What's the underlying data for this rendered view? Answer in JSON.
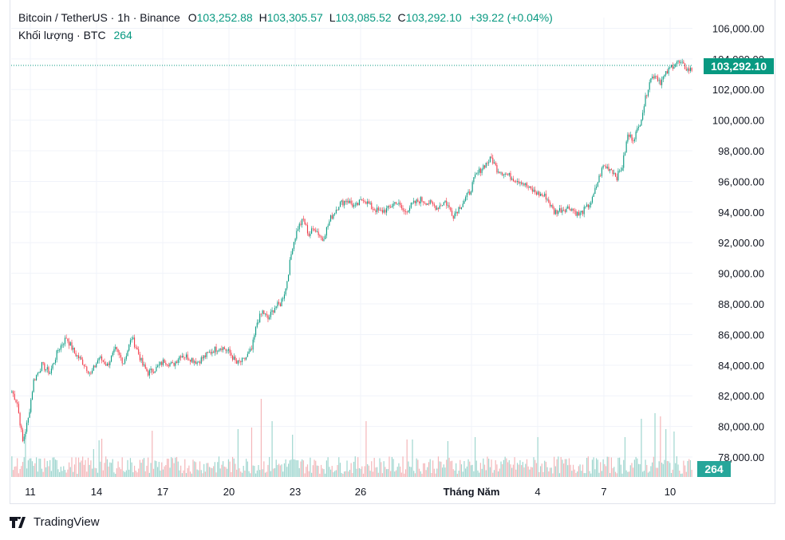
{
  "header": {
    "symbol": "Bitcoin / TetherUS · 1h · Binance",
    "open_label": "O",
    "open": "103,252.88",
    "high_label": "H",
    "high": "103,305.57",
    "low_label": "L",
    "low": "103,085.52",
    "close_label": "C",
    "close": "103,292.10",
    "change": "+39.22 (+0.04%)",
    "volume_label": "Khối lượng · BTC",
    "volume": "264"
  },
  "last_price_tag": "103,292.10",
  "volume_tag": "264",
  "branding": "TradingView",
  "colors": {
    "up": "#089981",
    "down": "#f23645",
    "vol_up": "#9fd6cf",
    "vol_down": "#f4b6b9"
  },
  "chart_data": {
    "type": "candlestick",
    "y_ticks": [
      "106,000.00",
      "104,000.00",
      "102,000.00",
      "100,000.00",
      "98,000.00",
      "96,000.00",
      "94,000.00",
      "92,000.00",
      "90,000.00",
      "88,000.00",
      "86,000.00",
      "84,000.00",
      "82,000.00",
      "80,000.00",
      "78,000.00"
    ],
    "x_ticks": [
      "11",
      "14",
      "17",
      "20",
      "23",
      "26",
      "Tháng Năm",
      "4",
      "7",
      "10"
    ],
    "ylim": [
      76700,
      106700
    ],
    "close_path": [
      [
        0,
        82300
      ],
      [
        4,
        81500
      ],
      [
        8,
        79000
      ],
      [
        12,
        80500
      ],
      [
        16,
        83000
      ],
      [
        22,
        84000
      ],
      [
        28,
        83500
      ],
      [
        34,
        85000
      ],
      [
        40,
        85800
      ],
      [
        46,
        84800
      ],
      [
        52,
        84200
      ],
      [
        58,
        83400
      ],
      [
        64,
        84500
      ],
      [
        70,
        84000
      ],
      [
        76,
        85000
      ],
      [
        82,
        84200
      ],
      [
        88,
        85800
      ],
      [
        92,
        85000
      ],
      [
        96,
        84000
      ],
      [
        100,
        83500
      ],
      [
        106,
        83800
      ],
      [
        112,
        84300
      ],
      [
        118,
        84000
      ],
      [
        124,
        84700
      ],
      [
        130,
        84500
      ],
      [
        136,
        84200
      ],
      [
        142,
        84600
      ],
      [
        148,
        85000
      ],
      [
        154,
        85200
      ],
      [
        160,
        84800
      ],
      [
        165,
        84100
      ],
      [
        170,
        84300
      ],
      [
        176,
        85000
      ],
      [
        180,
        86800
      ],
      [
        184,
        87500
      ],
      [
        188,
        87000
      ],
      [
        193,
        87800
      ],
      [
        197,
        88000
      ],
      [
        201,
        89000
      ],
      [
        206,
        91800
      ],
      [
        210,
        93000
      ],
      [
        214,
        93500
      ],
      [
        218,
        92500
      ],
      [
        222,
        93000
      ],
      [
        228,
        92200
      ],
      [
        234,
        93600
      ],
      [
        240,
        94500
      ],
      [
        246,
        94800
      ],
      [
        252,
        94300
      ],
      [
        258,
        94900
      ],
      [
        264,
        94300
      ],
      [
        270,
        94000
      ],
      [
        276,
        94200
      ],
      [
        282,
        94700
      ],
      [
        288,
        94000
      ],
      [
        294,
        94500
      ],
      [
        300,
        94800
      ],
      [
        306,
        94600
      ],
      [
        312,
        94300
      ],
      [
        318,
        94700
      ],
      [
        324,
        93800
      ],
      [
        330,
        94500
      ],
      [
        336,
        95300
      ],
      [
        340,
        96300
      ],
      [
        346,
        97000
      ],
      [
        352,
        97500
      ],
      [
        356,
        96800
      ],
      [
        362,
        96500
      ],
      [
        368,
        96200
      ],
      [
        374,
        96000
      ],
      [
        380,
        95500
      ],
      [
        386,
        95200
      ],
      [
        392,
        95000
      ],
      [
        398,
        94000
      ],
      [
        404,
        94200
      ],
      [
        410,
        94300
      ],
      [
        416,
        93800
      ],
      [
        422,
        94300
      ],
      [
        426,
        94800
      ],
      [
        430,
        96000
      ],
      [
        434,
        97000
      ],
      [
        440,
        96800
      ],
      [
        444,
        96300
      ],
      [
        448,
        97000
      ],
      [
        452,
        99000
      ],
      [
        456,
        98800
      ],
      [
        460,
        99500
      ],
      [
        464,
        101000
      ],
      [
        468,
        102600
      ],
      [
        472,
        103000
      ],
      [
        476,
        102500
      ],
      [
        480,
        103000
      ],
      [
        484,
        103500
      ],
      [
        488,
        103800
      ],
      [
        492,
        103600
      ],
      [
        496,
        103300
      ]
    ],
    "volume_spikes": [
      [
        10,
        52
      ],
      [
        60,
        35
      ],
      [
        64,
        46
      ],
      [
        66,
        48
      ],
      [
        103,
        58
      ],
      [
        166,
        60
      ],
      [
        176,
        62
      ],
      [
        183,
        98
      ],
      [
        191,
        70
      ],
      [
        206,
        53
      ],
      [
        260,
        70
      ],
      [
        290,
        47
      ],
      [
        294,
        47
      ],
      [
        320,
        45
      ],
      [
        340,
        50
      ],
      [
        386,
        50
      ],
      [
        450,
        50
      ],
      [
        462,
        73
      ],
      [
        472,
        80
      ],
      [
        476,
        76
      ],
      [
        480,
        60
      ],
      [
        486,
        57
      ],
      [
        498,
        21
      ]
    ],
    "volume_axis_max": 140
  }
}
